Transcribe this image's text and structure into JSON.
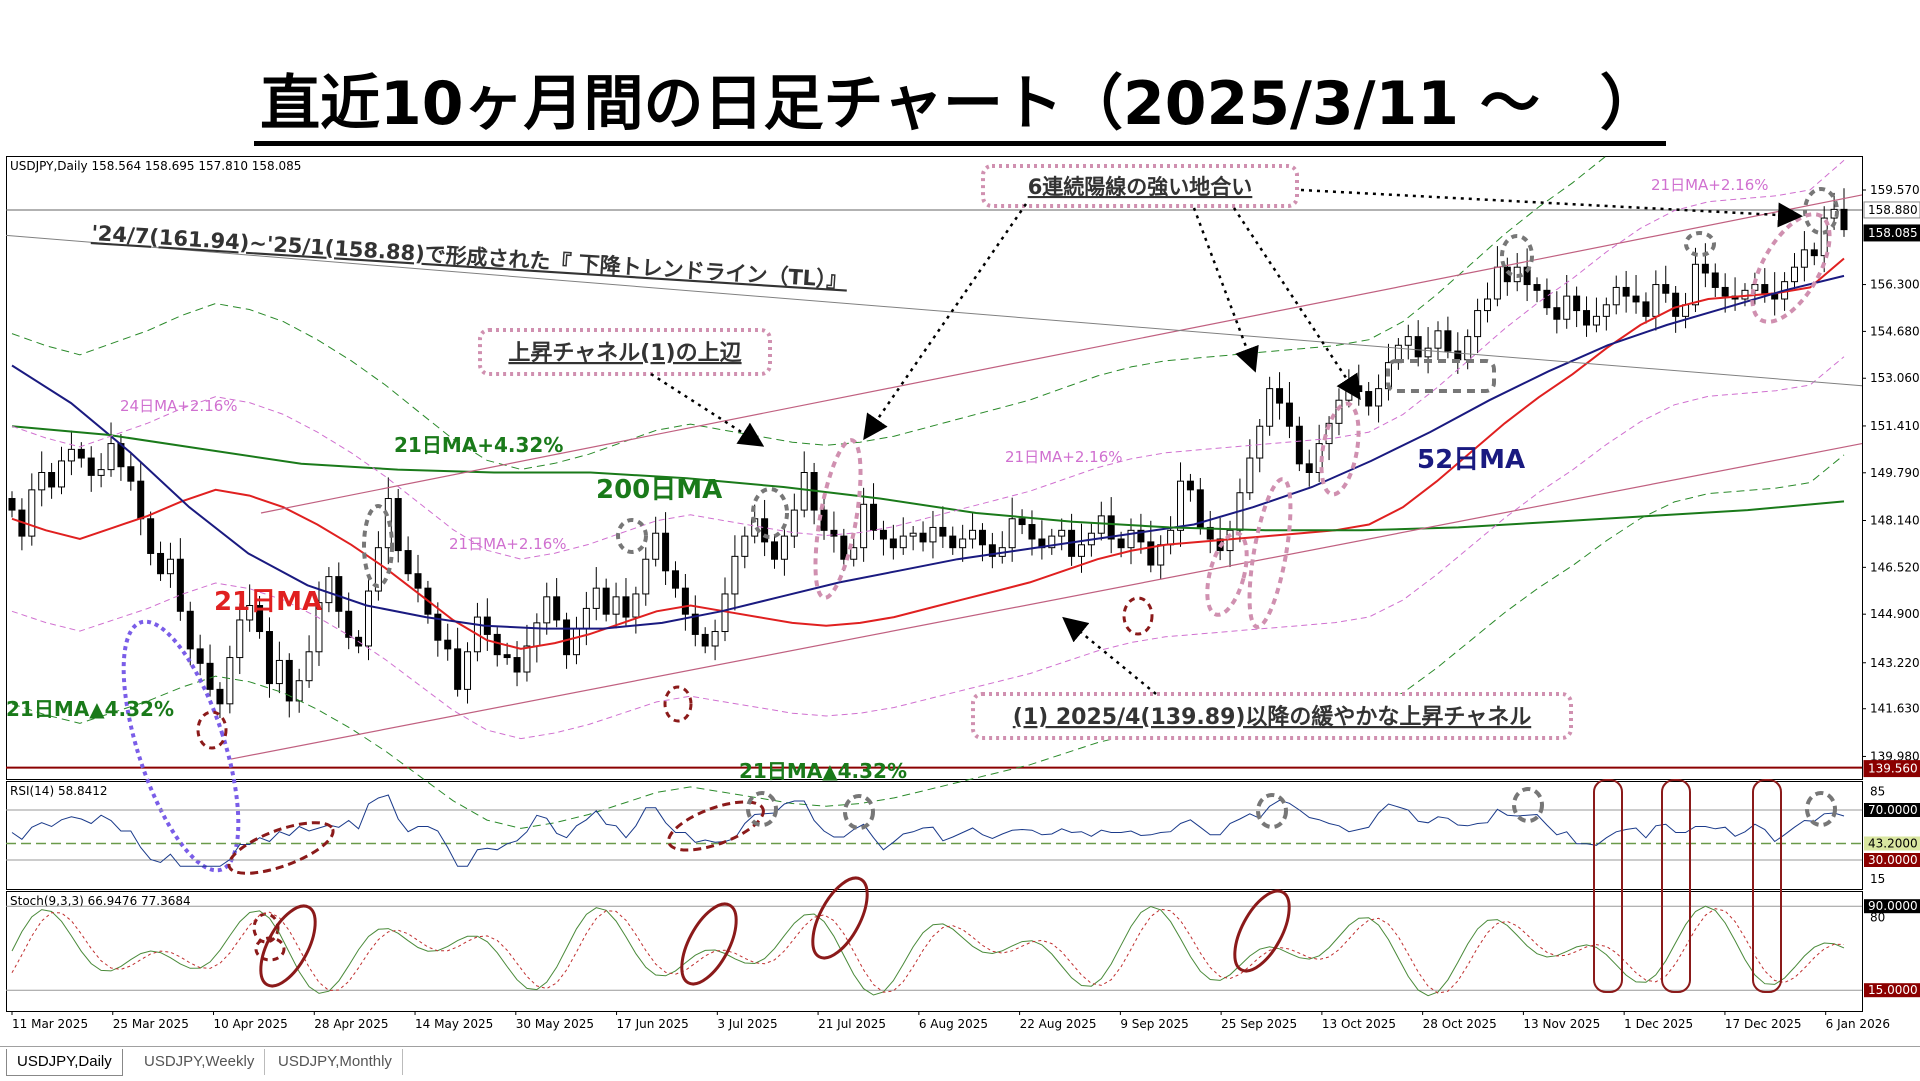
{
  "title": "直近10ヶ月間の日足チャート（2025/3/11 ～　）",
  "colors": {
    "bull_candle": "#ffffff",
    "bear_candle": "#000000",
    "ma21": "#e02020",
    "ma52": "#1a1a80",
    "ma200": "#1a7a1a",
    "band_216": "#d070d0",
    "band_432": "#2a8a2a",
    "channel_line": "#c06080",
    "trendline": "#808080",
    "marker_dark": "#8b1a1a",
    "marker_gray": "#777777",
    "marker_pink": "#d090b0",
    "marker_violet": "#7a5de8",
    "price_line": "#8b0000"
  },
  "main_panel": {
    "info": "USDJPY,Daily  158.564 158.695 157.810 158.085",
    "price_axis": [
      "159.570",
      "158.880",
      "158.085",
      "156.300",
      "154.680",
      "153.060",
      "151.410",
      "149.790",
      "148.140",
      "146.520",
      "144.900",
      "143.220",
      "141.630",
      "139.980",
      "139.560"
    ],
    "badges": {
      "current": "158.085",
      "resistance": "158.880",
      "support": "139.560"
    },
    "annotations": {
      "trendline": "'24/7(161.94)~'25/1(158.88)で形成された『 下降トレンドライン（TL）』",
      "channel_top": "上昇チャネル(1)の上辺",
      "channel": "(1) 2025/4(139.89)以降の緩やかな上昇チャネル",
      "six_bull": "6連続陽線の強い地合い",
      "ma21_plus_432": "21日MA+4.32%",
      "ma21_minus_432_left": "21日MA▲4.32%",
      "ma21_minus_432_bottom": "21日MA▲4.32%",
      "ma200": "200日MA",
      "ma21": "21日MA",
      "ma52": "52日MA",
      "ma216_a": "24日MA+2.16%",
      "ma216_b": "21日MA+2.16%",
      "ma216_c": "21日MA+2.16%",
      "ma216_d": "21日MA+2.16%"
    }
  },
  "rsi_panel": {
    "info": "RSI(14) 58.8412",
    "levels": [
      "70.0000",
      "43.2000",
      "30.0000"
    ],
    "scale": [
      "85",
      "15"
    ]
  },
  "stoch_panel": {
    "info": "Stoch(9,3,3) 66.9476 77.3684",
    "levels": [
      "90.0000",
      "15.0000"
    ],
    "scale": [
      "80"
    ]
  },
  "x_axis": [
    "11 Mar 2025",
    "25 Mar 2025",
    "10 Apr 2025",
    "28 Apr 2025",
    "14 May 2025",
    "30 May 2025",
    "17 Jun 2025",
    "3 Jul 2025",
    "21 Jul 2025",
    "6 Aug 2025",
    "22 Aug 2025",
    "9 Sep 2025",
    "25 Sep 2025",
    "13 Oct 2025",
    "28 Oct 2025",
    "13 Nov 2025",
    "1 Dec 2025",
    "17 Dec 2025",
    "6 Jan 2026"
  ],
  "tabs": [
    "USDJPY,Daily",
    "USDJPY,Weekly",
    "USDJPY,Monthly"
  ],
  "chart_data": {
    "type": "candlestick",
    "symbol": "USDJPY",
    "timeframe": "Daily",
    "ohlc_latest": {
      "open": 158.564,
      "high": 158.695,
      "low": 157.81,
      "close": 158.085
    },
    "ylim": [
      139.2,
      160.4
    ],
    "price_axis_ticks": [
      159.57,
      158.88,
      158.085,
      156.3,
      154.68,
      153.06,
      151.41,
      149.79,
      148.14,
      146.52,
      144.9,
      143.22,
      141.63,
      139.98,
      139.56
    ],
    "date_axis_ticks": [
      "11 Mar 2025",
      "25 Mar 2025",
      "10 Apr 2025",
      "28 Apr 2025",
      "14 May 2025",
      "30 May 2025",
      "17 Jun 2025",
      "3 Jul 2025",
      "21 Jul 2025",
      "6 Aug 2025",
      "22 Aug 2025",
      "9 Sep 2025",
      "25 Sep 2025",
      "13 Oct 2025",
      "28 Oct 2025",
      "13 Nov 2025",
      "1 Dec 2025",
      "17 Dec 2025",
      "6 Jan 2026"
    ],
    "closes": [
      148.5,
      147.6,
      149.2,
      149.8,
      149.3,
      150.2,
      150.6,
      150.3,
      149.7,
      149.9,
      150.8,
      150.0,
      149.5,
      148.2,
      147.0,
      146.3,
      146.8,
      145.0,
      143.7,
      143.2,
      142.3,
      141.8,
      143.4,
      144.7,
      145.2,
      144.3,
      142.5,
      143.3,
      141.9,
      142.6,
      143.6,
      145.3,
      146.2,
      145.0,
      144.1,
      143.8,
      145.7,
      147.2,
      148.9,
      147.1,
      146.3,
      145.8,
      144.9,
      144.0,
      143.7,
      142.3,
      143.6,
      144.8,
      144.2,
      143.5,
      143.4,
      142.9,
      143.8,
      144.6,
      145.5,
      144.7,
      143.5,
      144.4,
      145.1,
      145.8,
      144.9,
      145.5,
      144.8,
      145.6,
      146.8,
      147.7,
      146.4,
      145.8,
      144.9,
      144.2,
      143.8,
      144.3,
      145.6,
      146.9,
      147.6,
      148.2,
      147.4,
      146.8,
      147.6,
      148.5,
      149.8,
      148.5,
      147.8,
      147.6,
      146.8,
      147.2,
      148.7,
      147.8,
      147.5,
      147.2,
      147.6,
      147.7,
      147.4,
      147.9,
      147.6,
      147.2,
      147.5,
      147.8,
      147.3,
      146.9,
      147.2,
      148.2,
      148.0,
      147.5,
      147.2,
      147.6,
      147.8,
      146.9,
      147.3,
      147.7,
      148.3,
      147.5,
      147.2,
      147.8,
      147.4,
      146.6,
      147.3,
      147.8,
      149.5,
      149.2,
      147.9,
      147.5,
      147.1,
      147.8,
      149.1,
      150.3,
      151.4,
      152.7,
      152.2,
      151.4,
      150.1,
      149.8,
      150.8,
      151.5,
      152.3,
      152.8,
      152.6,
      152.1,
      152.7,
      153.6,
      154.2,
      154.5,
      153.8,
      154.1,
      154.7,
      154.0,
      153.7,
      154.5,
      155.4,
      155.8,
      156.9,
      156.4,
      156.9,
      156.3,
      156.1,
      155.5,
      155.1,
      155.9,
      155.4,
      154.9,
      155.2,
      155.6,
      156.2,
      155.9,
      155.7,
      155.2,
      156.3,
      156.0,
      155.2,
      155.6,
      157.0,
      156.7,
      156.2,
      155.9,
      155.8,
      156.1,
      156.3,
      156.0,
      155.8,
      156.4,
      156.9,
      157.5,
      157.3,
      158.6,
      158.9,
      158.2
    ],
    "series": [
      {
        "name": "21日MA",
        "values": [
          148.2,
          147.8,
          147.5,
          147.9,
          148.3,
          148.8,
          149.2,
          149.0,
          148.6,
          148.0,
          147.3,
          146.5,
          145.6,
          144.7,
          144.0,
          143.7,
          143.9,
          144.2,
          144.6,
          145.0,
          145.2,
          145.0,
          144.8,
          144.6,
          144.5,
          144.6,
          144.8,
          145.1,
          145.4,
          145.7,
          146.0,
          146.4,
          146.8,
          147.1,
          147.3,
          147.4,
          147.5,
          147.6,
          147.7,
          147.8,
          148.0,
          148.6,
          149.5,
          150.5,
          151.5,
          152.4,
          153.2,
          154.1,
          154.9,
          155.5,
          155.8,
          155.9,
          156.0,
          156.2,
          157.2
        ]
      },
      {
        "name": "52日MA",
        "values": [
          153.5,
          152.2,
          150.5,
          148.6,
          147.0,
          145.9,
          145.2,
          144.8,
          144.5,
          144.4,
          144.4,
          144.6,
          145.0,
          145.5,
          146.0,
          146.4,
          146.8,
          147.1,
          147.4,
          147.7,
          148.0,
          148.6,
          149.3,
          150.2,
          151.2,
          152.3,
          153.3,
          154.2,
          154.9,
          155.5,
          156.1,
          156.6
        ]
      },
      {
        "name": "200日MA",
        "values": [
          151.4,
          151.1,
          150.6,
          150.1,
          149.9,
          149.8,
          149.8,
          149.6,
          149.3,
          148.9,
          148.4,
          148.1,
          147.9,
          147.8,
          147.8,
          147.9,
          148.1,
          148.3,
          148.5,
          148.8
        ]
      }
    ]
  }
}
